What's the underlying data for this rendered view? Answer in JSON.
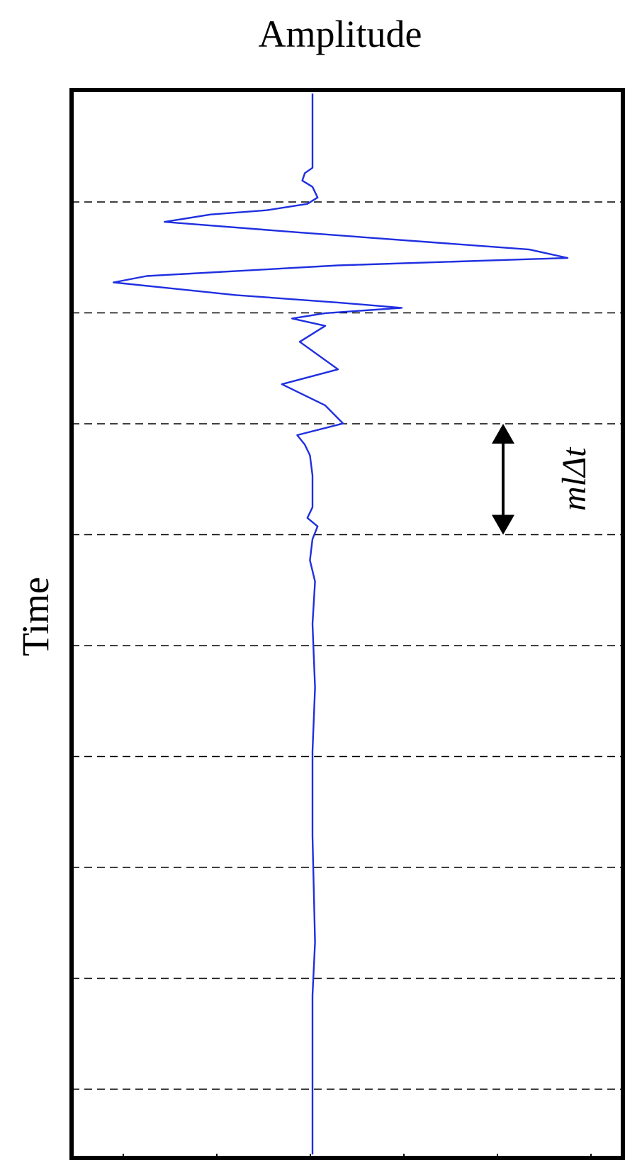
{
  "chart_data": {
    "type": "line",
    "title": "",
    "xlabel": "Amplitude",
    "ylabel": "Time",
    "orientation": "vertical-trace",
    "grid": "horizontal-dashed",
    "gridline_count": 9,
    "x_ticks": 6,
    "annotation": {
      "text": "mlΔt",
      "between_gridlines": [
        3,
        4
      ]
    },
    "colors": {
      "trace": "#1f2fe0",
      "frame": "#000000",
      "grid": "#000000"
    },
    "series": [
      {
        "points": [
          [
            0.0,
            0.0
          ],
          [
            0.0,
            0.05
          ],
          [
            0.0,
            0.07
          ],
          [
            -0.03,
            0.075
          ],
          [
            -0.04,
            0.082
          ],
          [
            0.0,
            0.088
          ],
          [
            0.02,
            0.098
          ],
          [
            -0.02,
            0.104
          ],
          [
            -0.18,
            0.11
          ],
          [
            -0.4,
            0.114
          ],
          [
            -0.58,
            0.121
          ],
          [
            -0.05,
            0.131
          ],
          [
            0.85,
            0.147
          ],
          [
            1.0,
            0.155
          ],
          [
            0.1,
            0.162
          ],
          [
            -0.65,
            0.172
          ],
          [
            -0.78,
            0.178
          ],
          [
            -0.3,
            0.19
          ],
          [
            0.1,
            0.197
          ],
          [
            0.35,
            0.202
          ],
          [
            0.05,
            0.207
          ],
          [
            -0.08,
            0.212
          ],
          [
            0.05,
            0.219
          ],
          [
            -0.05,
            0.234
          ],
          [
            0.1,
            0.26
          ],
          [
            -0.12,
            0.274
          ],
          [
            0.05,
            0.294
          ],
          [
            0.12,
            0.311
          ],
          [
            -0.06,
            0.322
          ],
          [
            -0.03,
            0.331
          ],
          [
            -0.01,
            0.341
          ],
          [
            0.0,
            0.36
          ],
          [
            0.0,
            0.39
          ],
          [
            -0.02,
            0.4
          ],
          [
            0.02,
            0.408
          ],
          [
            0.0,
            0.42
          ],
          [
            -0.01,
            0.44
          ],
          [
            0.01,
            0.46
          ],
          [
            0.0,
            0.5
          ],
          [
            0.01,
            0.56
          ],
          [
            0.0,
            0.62
          ],
          [
            0.0,
            0.7
          ],
          [
            0.01,
            0.8
          ],
          [
            0.0,
            0.85
          ],
          [
            0.0,
            0.95
          ],
          [
            0.0,
            1.0
          ]
        ]
      }
    ]
  }
}
